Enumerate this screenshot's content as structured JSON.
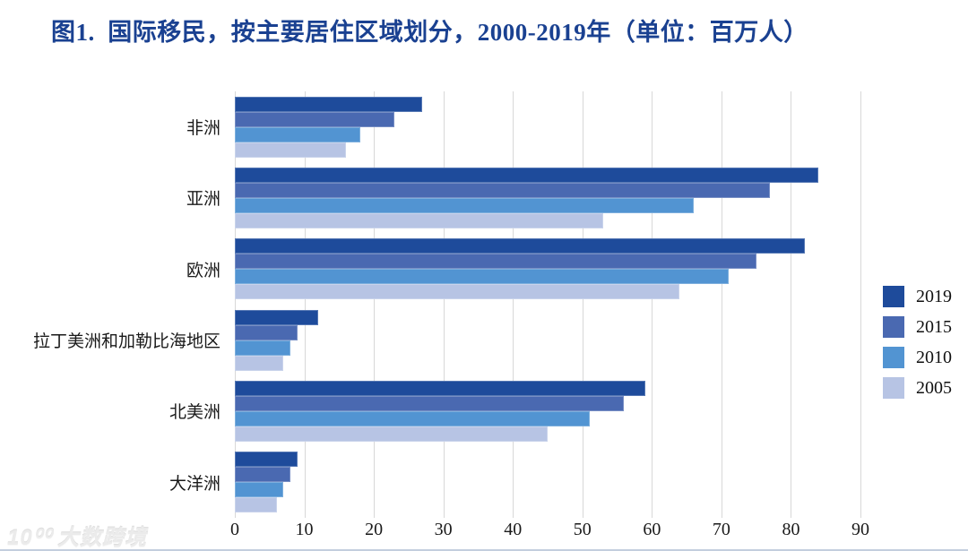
{
  "title": "图1.  国际移民，按主要居住区域划分，2000-2019年（单位：百万人）",
  "watermark": {
    "logo": "10⁰⁰",
    "text": "大数跨境"
  },
  "colors": {
    "title": "#1A4191",
    "gridline": "#d8d8d8",
    "axis_text": "#1a1a1a"
  },
  "chart_data": {
    "type": "bar",
    "orientation": "horizontal",
    "title": "图1. 国际移民，按主要居住区域划分，2000-2019年（单位：百万人）",
    "categories": [
      "非洲",
      "亚洲",
      "欧洲",
      "拉丁美洲和加勒比海地区",
      "北美洲",
      "大洋洲"
    ],
    "series": [
      {
        "name": "2019",
        "color": "#1E4B9B",
        "values": [
          27,
          84,
          82,
          12,
          59,
          9
        ]
      },
      {
        "name": "2015",
        "color": "#4A69B1",
        "values": [
          23,
          77,
          75,
          9,
          56,
          8
        ]
      },
      {
        "name": "2010",
        "color": "#5294D2",
        "values": [
          18,
          66,
          71,
          8,
          51,
          7
        ]
      },
      {
        "name": "2005",
        "color": "#B7C4E4",
        "values": [
          16,
          53,
          64,
          7,
          45,
          6
        ]
      }
    ],
    "xlabel": "",
    "ylabel": "",
    "xlim": [
      0,
      90
    ],
    "xticks": [
      0,
      10,
      20,
      30,
      40,
      50,
      60,
      70,
      80,
      90
    ],
    "grid": "vertical",
    "legend_position": "right",
    "unit": "百万人"
  }
}
